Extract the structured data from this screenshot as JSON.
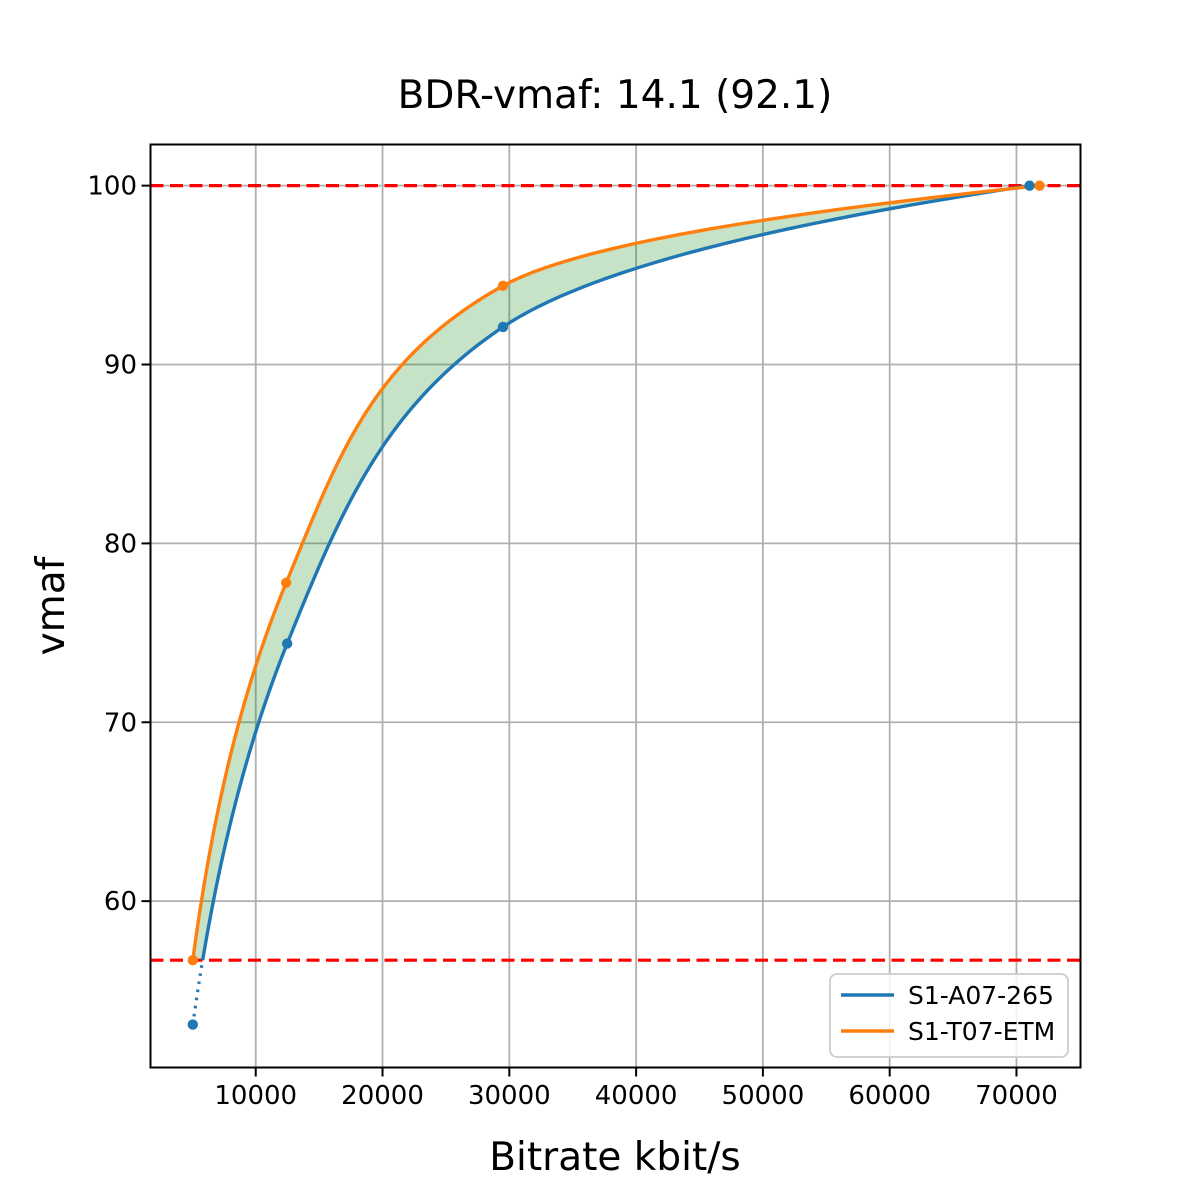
{
  "title": "BDR-vmaf: 14.1 (92.1)",
  "chart_data": {
    "type": "line",
    "title": "BDR-vmaf: 14.1 (92.1)",
    "xlabel": "Bitrate kbit/s",
    "ylabel": "vmaf",
    "xlim": [
      1700,
      75050
    ],
    "ylim": [
      50.7,
      102.3
    ],
    "xticks": [
      10000,
      20000,
      30000,
      40000,
      50000,
      60000,
      70000
    ],
    "yticks": [
      60,
      70,
      80,
      90,
      100
    ],
    "grid": true,
    "grid_color": "#b0b0b0",
    "background": "#ffffff",
    "legend_position": "lower right",
    "interpolation": "pchip-log-bitrate",
    "series": [
      {
        "name": "S1-A07-265",
        "color": "#1f77b4",
        "marker": "circle",
        "x": [
          5036,
          12480,
          29503,
          71032
        ],
        "y": [
          53.1,
          74.4,
          92.1,
          100.0
        ]
      },
      {
        "name": "S1-T07-ETM",
        "color": "#ff7f0e",
        "marker": "circle",
        "x": [
          5036,
          12403,
          29503,
          71820
        ],
        "y": [
          56.7,
          77.8,
          94.4,
          100.0
        ]
      }
    ],
    "hlines": [
      {
        "y": 100.0,
        "color": "#ff0000",
        "style": "dashed"
      },
      {
        "y": 56.7,
        "color": "#ff0000",
        "style": "dashed"
      }
    ],
    "fill_between": {
      "between": [
        "S1-A07-265",
        "S1-T07-ETM"
      ],
      "color": "#008000",
      "alpha": 0.22,
      "range_vmaf": [
        56.7,
        100.0
      ]
    },
    "out_of_range_style": "dotted"
  }
}
